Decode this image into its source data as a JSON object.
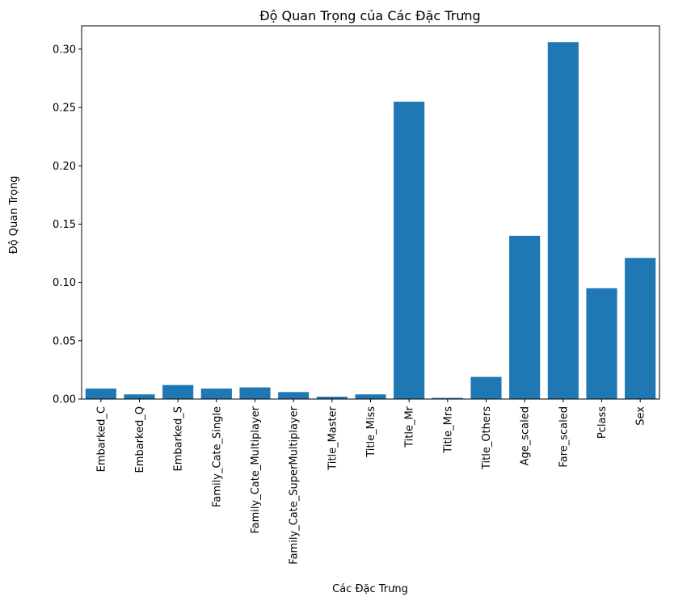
{
  "chart_data": {
    "type": "bar",
    "title": "Độ Quan Trọng của Các Đặc Trưng",
    "xlabel": "Các Đặc Trưng",
    "ylabel": "Độ Quan Trọng",
    "categories": [
      "Embarked_C",
      "Embarked_Q",
      "Embarked_S",
      "Family_Cate_Single",
      "Family_Cate_Multiplayer",
      "Family_Cate_SuperMultiplayer",
      "Title_Master",
      "Title_Miss",
      "Title_Mr",
      "Title_Mrs",
      "Title_Others",
      "Age_scaled",
      "Fare_scaled",
      "Pclass",
      "Sex"
    ],
    "values": [
      0.009,
      0.004,
      0.012,
      0.009,
      0.01,
      0.006,
      0.002,
      0.004,
      0.255,
      0.001,
      0.019,
      0.14,
      0.306,
      0.095,
      0.121
    ],
    "ylim": [
      0,
      0.32
    ],
    "yticks": [
      0.0,
      0.05,
      0.1,
      0.15,
      0.2,
      0.25,
      0.3
    ],
    "ytick_labels": [
      "0.00",
      "0.05",
      "0.10",
      "0.15",
      "0.20",
      "0.25",
      "0.30"
    ],
    "grid": false,
    "legend": "none",
    "bar_color": "#1f77b4"
  }
}
